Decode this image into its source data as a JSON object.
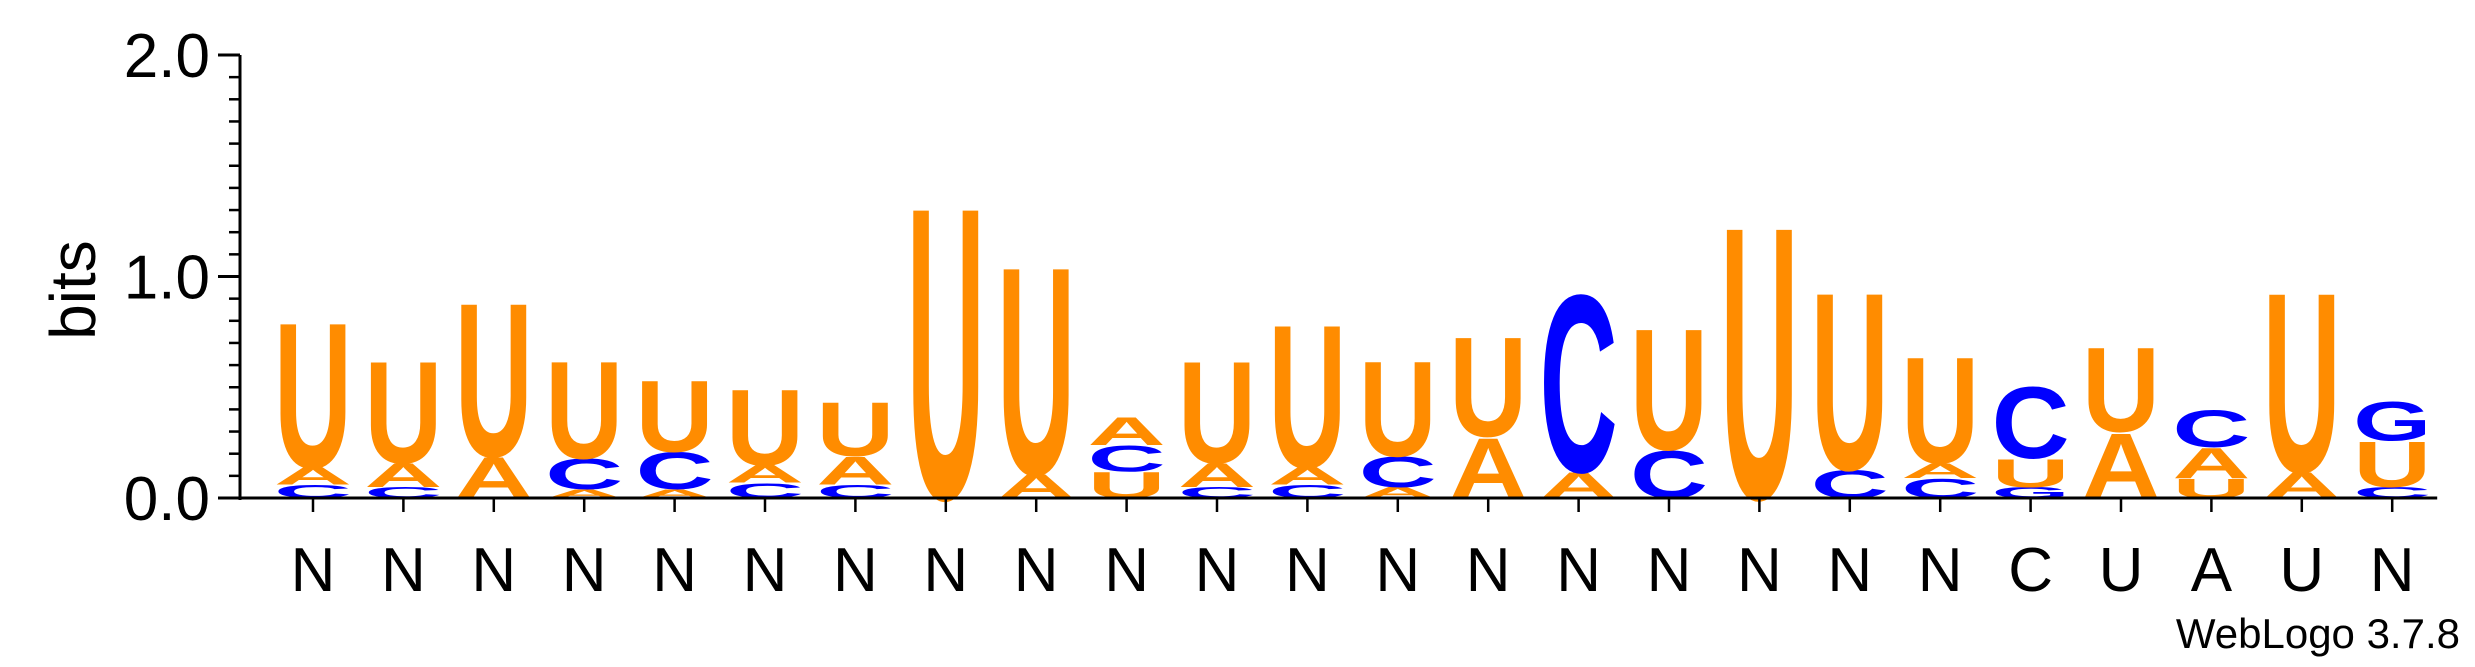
{
  "chart_data": {
    "type": "sequence-logo",
    "title": "",
    "xlabel": "",
    "ylabel": "bits",
    "ylim": [
      0,
      2.0
    ],
    "yticks": [
      "0.0",
      "1.0",
      "2.0"
    ],
    "colors": {
      "U": "#ff8c00",
      "A": "#ff8c00",
      "C": "#0000ff",
      "G": "#0000ff"
    },
    "watermark": "WebLogo 3.7.8",
    "positions": [
      {
        "label": "N",
        "stack": [
          {
            "letter": "C",
            "bits": 0.06
          },
          {
            "letter": "A",
            "bits": 0.08
          },
          {
            "letter": "U",
            "bits": 0.67
          }
        ]
      },
      {
        "label": "N",
        "stack": [
          {
            "letter": "C",
            "bits": 0.05
          },
          {
            "letter": "A",
            "bits": 0.11
          },
          {
            "letter": "U",
            "bits": 0.47
          }
        ]
      },
      {
        "label": "N",
        "stack": [
          {
            "letter": "A",
            "bits": 0.19
          },
          {
            "letter": "U",
            "bits": 0.71
          }
        ]
      },
      {
        "label": "N",
        "stack": [
          {
            "letter": "A",
            "bits": 0.04
          },
          {
            "letter": "C",
            "bits": 0.14
          },
          {
            "letter": "U",
            "bits": 0.45
          }
        ]
      },
      {
        "label": "N",
        "stack": [
          {
            "letter": "A",
            "bits": 0.04
          },
          {
            "letter": "C",
            "bits": 0.17
          },
          {
            "letter": "U",
            "bits": 0.33
          }
        ]
      },
      {
        "label": "N",
        "stack": [
          {
            "letter": "C",
            "bits": 0.07
          },
          {
            "letter": "A",
            "bits": 0.08
          },
          {
            "letter": "U",
            "bits": 0.35
          }
        ]
      },
      {
        "label": "N",
        "stack": [
          {
            "letter": "C",
            "bits": 0.06
          },
          {
            "letter": "A",
            "bits": 0.13
          },
          {
            "letter": "U",
            "bits": 0.25
          }
        ]
      },
      {
        "label": "N",
        "stack": [
          {
            "letter": "U",
            "bits": 1.35
          }
        ]
      },
      {
        "label": "N",
        "stack": [
          {
            "letter": "A",
            "bits": 0.11
          },
          {
            "letter": "U",
            "bits": 0.96
          }
        ]
      },
      {
        "label": "N",
        "stack": [
          {
            "letter": "U",
            "bits": 0.12
          },
          {
            "letter": "C",
            "bits": 0.12
          },
          {
            "letter": "A",
            "bits": 0.13
          }
        ]
      },
      {
        "label": "N",
        "stack": [
          {
            "letter": "C",
            "bits": 0.05
          },
          {
            "letter": "A",
            "bits": 0.11
          },
          {
            "letter": "U",
            "bits": 0.47
          }
        ]
      },
      {
        "label": "N",
        "stack": [
          {
            "letter": "C",
            "bits": 0.06
          },
          {
            "letter": "A",
            "bits": 0.08
          },
          {
            "letter": "U",
            "bits": 0.66
          }
        ]
      },
      {
        "label": "N",
        "stack": [
          {
            "letter": "A",
            "bits": 0.05
          },
          {
            "letter": "C",
            "bits": 0.14
          },
          {
            "letter": "U",
            "bits": 0.44
          }
        ]
      },
      {
        "label": "N",
        "stack": [
          {
            "letter": "A",
            "bits": 0.28
          },
          {
            "letter": "U",
            "bits": 0.46
          }
        ]
      },
      {
        "label": "N",
        "stack": [
          {
            "letter": "A",
            "bits": 0.12
          },
          {
            "letter": "C",
            "bits": 0.82
          }
        ]
      },
      {
        "label": "N",
        "stack": [
          {
            "letter": "C",
            "bits": 0.22
          },
          {
            "letter": "U",
            "bits": 0.56
          }
        ]
      },
      {
        "label": "N",
        "stack": [
          {
            "letter": "U",
            "bits": 1.26
          }
        ]
      },
      {
        "label": "N",
        "stack": [
          {
            "letter": "C",
            "bits": 0.13
          },
          {
            "letter": "U",
            "bits": 0.82
          }
        ]
      },
      {
        "label": "N",
        "stack": [
          {
            "letter": "C",
            "bits": 0.09
          },
          {
            "letter": "A",
            "bits": 0.07
          },
          {
            "letter": "U",
            "bits": 0.49
          }
        ]
      },
      {
        "label": "C",
        "stack": [
          {
            "letter": "G",
            "bits": 0.05
          },
          {
            "letter": "U",
            "bits": 0.13
          },
          {
            "letter": "C",
            "bits": 0.33
          }
        ]
      },
      {
        "label": "U",
        "stack": [
          {
            "letter": "A",
            "bits": 0.3
          },
          {
            "letter": "U",
            "bits": 0.39
          }
        ]
      },
      {
        "label": "A",
        "stack": [
          {
            "letter": "U",
            "bits": 0.09
          },
          {
            "letter": "A",
            "bits": 0.14
          },
          {
            "letter": "C",
            "bits": 0.17
          }
        ]
      },
      {
        "label": "U",
        "stack": [
          {
            "letter": "A",
            "bits": 0.12
          },
          {
            "letter": "U",
            "bits": 0.83
          }
        ]
      },
      {
        "label": "N",
        "stack": [
          {
            "letter": "C",
            "bits": 0.05
          },
          {
            "letter": "U",
            "bits": 0.21
          },
          {
            "letter": "G",
            "bits": 0.18
          }
        ]
      }
    ]
  }
}
